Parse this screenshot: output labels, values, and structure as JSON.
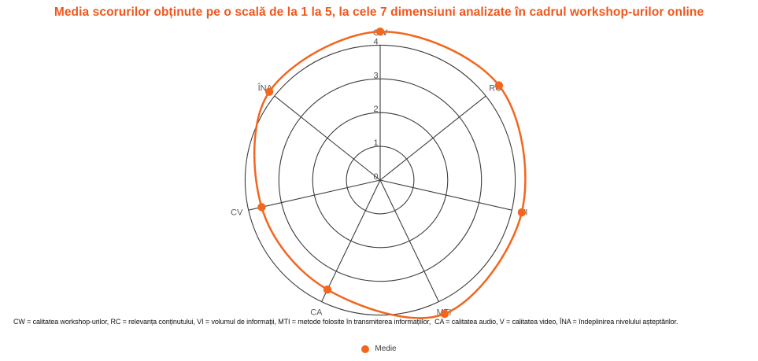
{
  "chart_data": {
    "type": "radar",
    "title": "Media scorurilor obținute pe o scală de la 1 la 5, la cele 7 dimensiuni analizate în cadrul workshop-urilor online",
    "title_color": "#f1571d",
    "categories": [
      "CW",
      "RC",
      "VI",
      "MTI",
      "CA",
      "CV",
      "ÎNA"
    ],
    "series": [
      {
        "name": "Medie",
        "color": "#f2661d",
        "values": [
          4.4,
          4.5,
          4.3,
          4.4,
          3.6,
          3.6,
          4.2
        ]
      }
    ],
    "axis": {
      "min": 0,
      "max": 4,
      "ticks": [
        "0",
        "1",
        "2",
        "3",
        "4"
      ]
    },
    "grid": true,
    "line_smooth": true,
    "legend": {
      "position": "bottom",
      "items": [
        {
          "label": "Medie",
          "color": "#f2661d"
        }
      ]
    }
  },
  "footnote": {
    "text": "CW = calitatea workshop-urilor, RC = relevanța conținutului, VI = volumul de informații, MTI = metode folosite în transmiterea informațiilor,  CA = calitatea audio, V = calitatea video, ÎNA = îndeplinirea nivelului așteptărilor."
  }
}
